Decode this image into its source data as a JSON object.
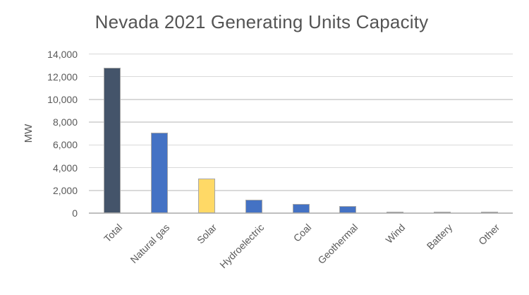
{
  "chart_data": {
    "type": "bar",
    "title": "Nevada 2021 Generating Units Capacity",
    "xlabel": "",
    "ylabel": "MW",
    "categories": [
      "Total",
      "Natural gas",
      "Solar",
      "Hydroelectric",
      "Coal",
      "Geothermal",
      "Wind",
      "Battery",
      "Other"
    ],
    "values": [
      12800,
      7100,
      3050,
      1150,
      800,
      650,
      150,
      150,
      100
    ],
    "ylim": [
      0,
      14000
    ],
    "ytick_step": 2000,
    "ytick_labels": [
      "0",
      "2,000",
      "4,000",
      "6,000",
      "8,000",
      "10,000",
      "12,000",
      "14,000"
    ],
    "grid": true,
    "legend": "none",
    "bar_colors": [
      "#44546A",
      "#4472C4",
      "#FFD966",
      "#4472C4",
      "#4472C4",
      "#4472C4",
      "#4472C4",
      "#4472C4",
      "#4472C4"
    ],
    "bar_border_color": "#A6A6A6",
    "gridline_color": "#D9D9D9",
    "axis_line_color": "#BFBFBF",
    "title_color": "#545454",
    "label_color": "#595959"
  }
}
